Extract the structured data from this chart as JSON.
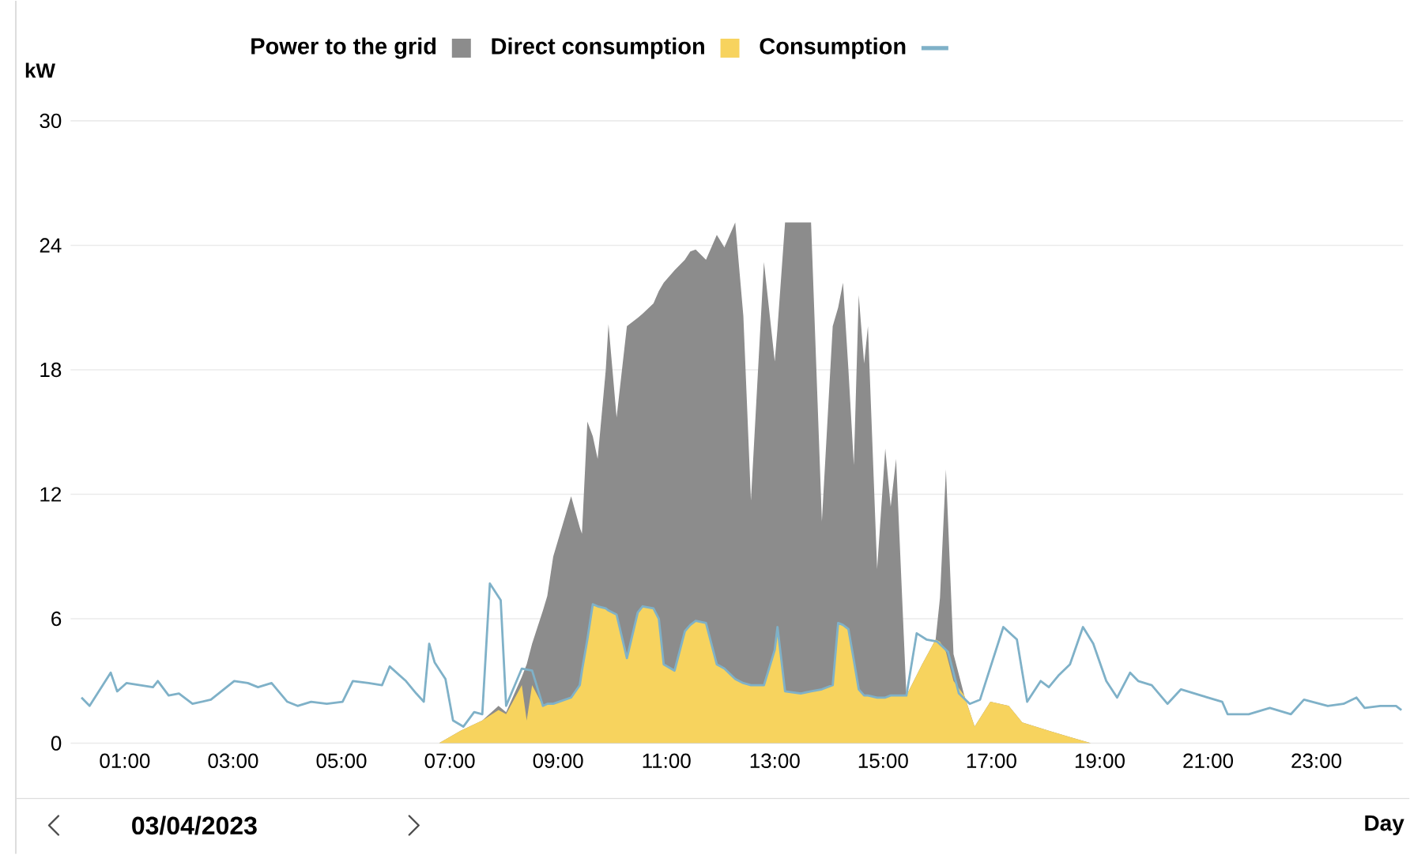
{
  "chart_data": {
    "type": "area",
    "ylabel": "kW",
    "legend": "top",
    "grid": "y",
    "stacked": true,
    "line_style": "solid",
    "xlim": [
      0,
      24.6
    ],
    "ylim": [
      0,
      30
    ],
    "yticks": [
      0,
      6,
      12,
      18,
      24,
      30
    ],
    "xticks": [
      {
        "value": 1,
        "label": "01:00"
      },
      {
        "value": 3,
        "label": "03:00"
      },
      {
        "value": 5,
        "label": "05:00"
      },
      {
        "value": 7,
        "label": "07:00"
      },
      {
        "value": 9,
        "label": "09:00"
      },
      {
        "value": 11,
        "label": "11:00"
      },
      {
        "value": 13,
        "label": "13:00"
      },
      {
        "value": 15,
        "label": "15:00"
      },
      {
        "value": 17,
        "label": "17:00"
      },
      {
        "value": 19,
        "label": "19:00"
      },
      {
        "value": 21,
        "label": "21:00"
      },
      {
        "value": 23,
        "label": "23:00"
      }
    ],
    "x": [
      6.8,
      7.2,
      7.6,
      7.9,
      8.04,
      8.33,
      8.42,
      8.52,
      8.72,
      8.8,
      8.91,
      9.24,
      9.4,
      9.44,
      9.54,
      9.64,
      9.73,
      9.88,
      9.93,
      10.08,
      10.27,
      10.47,
      10.56,
      10.76,
      10.86,
      10.95,
      11.15,
      11.34,
      11.44,
      11.54,
      11.73,
      11.93,
      12.07,
      12.27,
      12.42,
      12.56,
      12.8,
      13.0,
      13.05,
      13.19,
      13.48,
      13.67,
      13.87,
      14.07,
      14.17,
      14.26,
      14.36,
      14.46,
      14.55,
      14.65,
      14.72,
      14.89,
      15.04,
      15.14,
      15.24,
      15.43,
      15.72,
      15.97,
      16.05,
      16.16,
      16.3,
      16.5,
      16.69,
      16.98,
      17.32,
      17.57,
      18.06,
      18.45,
      18.84
    ],
    "series": [
      {
        "name": "Direct consumption",
        "color": "#f7d35e",
        "values": [
          0,
          0.6,
          1.1,
          1.6,
          1.4,
          2.8,
          1.1,
          2.8,
          1.8,
          1.9,
          1.9,
          2.2,
          2.8,
          3.5,
          5.0,
          6.7,
          6.6,
          6.5,
          6.4,
          6.2,
          4.1,
          6.3,
          6.6,
          6.5,
          6.0,
          3.8,
          3.5,
          5.4,
          5.7,
          5.9,
          5.8,
          3.8,
          3.6,
          3.1,
          2.9,
          2.8,
          2.8,
          4.5,
          5.6,
          2.5,
          2.4,
          2.5,
          2.6,
          2.8,
          5.8,
          5.7,
          5.5,
          4.0,
          2.6,
          2.3,
          2.3,
          2.2,
          2.2,
          2.3,
          2.3,
          2.3,
          3.8,
          5.0,
          4.9,
          4.4,
          3.0,
          2.3,
          0.8,
          2.0,
          1.8,
          1.0,
          0.6,
          0.3,
          0
        ]
      },
      {
        "name": "Power to the grid",
        "color": "#8c8c8c",
        "values": [
          0,
          0,
          0,
          0.2,
          0.1,
          0.4,
          2.7,
          2.0,
          4.6,
          5.2,
          7.1,
          9.7,
          7.6,
          6.6,
          10.5,
          8.1,
          7.1,
          11.5,
          13.8,
          9.5,
          16.0,
          14.2,
          14.1,
          14.7,
          15.8,
          18.4,
          19.3,
          17.9,
          18.0,
          17.9,
          17.5,
          20.7,
          20.3,
          22.0,
          17.7,
          8.9,
          20.4,
          13.9,
          14.4,
          22.6,
          22.7,
          22.6,
          8.1,
          17.3,
          15.2,
          16.5,
          12.5,
          9.4,
          19.0,
          16.0,
          17.8,
          6.2,
          12.0,
          9.1,
          11.4,
          0,
          0,
          0,
          2.1,
          8.8,
          1.3,
          0,
          0,
          0,
          0,
          0,
          0,
          0,
          0
        ]
      },
      {
        "name": "Consumption",
        "type": "line",
        "color": "#7fb1c8",
        "x": [
          0.2,
          0.35,
          0.74,
          0.86,
          1.03,
          1.52,
          1.61,
          1.81,
          2.0,
          2.25,
          2.59,
          3.02,
          3.27,
          3.46,
          3.71,
          4.0,
          4.19,
          4.44,
          4.73,
          5.02,
          5.21,
          5.5,
          5.75,
          5.89,
          6.19,
          6.38,
          6.52,
          6.62,
          6.72,
          6.92,
          7.06,
          7.25,
          7.45,
          7.6,
          7.74,
          7.89,
          7.94,
          8.04,
          8.33,
          8.52,
          8.72,
          8.8,
          8.91,
          9.24,
          9.4,
          9.44,
          9.54,
          9.64,
          9.73,
          9.88,
          9.93,
          10.08,
          10.27,
          10.47,
          10.56,
          10.76,
          10.86,
          10.95,
          11.15,
          11.34,
          11.44,
          11.54,
          11.73,
          11.93,
          12.07,
          12.27,
          12.42,
          12.56,
          12.8,
          13.0,
          13.05,
          13.19,
          13.48,
          13.67,
          13.87,
          14.07,
          14.17,
          14.26,
          14.36,
          14.46,
          14.55,
          14.65,
          14.72,
          14.89,
          15.04,
          15.14,
          15.24,
          15.43,
          15.62,
          15.8,
          16.0,
          16.2,
          16.4,
          16.6,
          16.79,
          17.22,
          17.47,
          17.66,
          17.91,
          18.06,
          18.25,
          18.45,
          18.69,
          18.88,
          19.12,
          19.32,
          19.56,
          19.71,
          19.96,
          20.25,
          20.5,
          20.87,
          21.26,
          21.36,
          21.75,
          22.14,
          22.53,
          22.77,
          23.21,
          23.5,
          23.74,
          23.89,
          24.18,
          24.47,
          24.57
        ],
        "values": [
          2.2,
          1.8,
          3.4,
          2.5,
          2.9,
          2.7,
          3.0,
          2.3,
          2.4,
          1.9,
          2.1,
          3.0,
          2.9,
          2.7,
          2.9,
          2.0,
          1.8,
          2.0,
          1.9,
          2.0,
          3.0,
          2.9,
          2.8,
          3.7,
          3.0,
          2.4,
          2.0,
          4.8,
          3.9,
          3.1,
          1.1,
          0.8,
          1.5,
          1.4,
          7.7,
          7.1,
          6.9,
          1.8,
          3.6,
          3.5,
          1.8,
          1.9,
          1.9,
          2.2,
          2.8,
          3.5,
          5.0,
          6.7,
          6.6,
          6.5,
          6.4,
          6.2,
          4.1,
          6.3,
          6.6,
          6.5,
          6.0,
          3.8,
          3.5,
          5.4,
          5.7,
          5.9,
          5.8,
          3.8,
          3.6,
          3.1,
          2.9,
          2.8,
          2.8,
          4.5,
          5.6,
          2.5,
          2.4,
          2.5,
          2.6,
          2.8,
          5.8,
          5.7,
          5.5,
          4.0,
          2.6,
          2.3,
          2.3,
          2.2,
          2.2,
          2.3,
          2.3,
          2.3,
          5.3,
          5.0,
          4.9,
          4.4,
          2.4,
          1.9,
          2.1,
          5.6,
          5.0,
          2.0,
          3.0,
          2.7,
          3.3,
          3.8,
          5.6,
          4.8,
          3.0,
          2.2,
          3.4,
          3.0,
          2.8,
          1.9,
          2.6,
          2.3,
          2.0,
          1.4,
          1.4,
          1.7,
          1.4,
          2.1,
          1.8,
          1.9,
          2.2,
          1.7,
          1.8,
          1.8,
          1.6
        ]
      }
    ],
    "annotations": [
      "03/04/2023",
      "Day"
    ]
  }
}
